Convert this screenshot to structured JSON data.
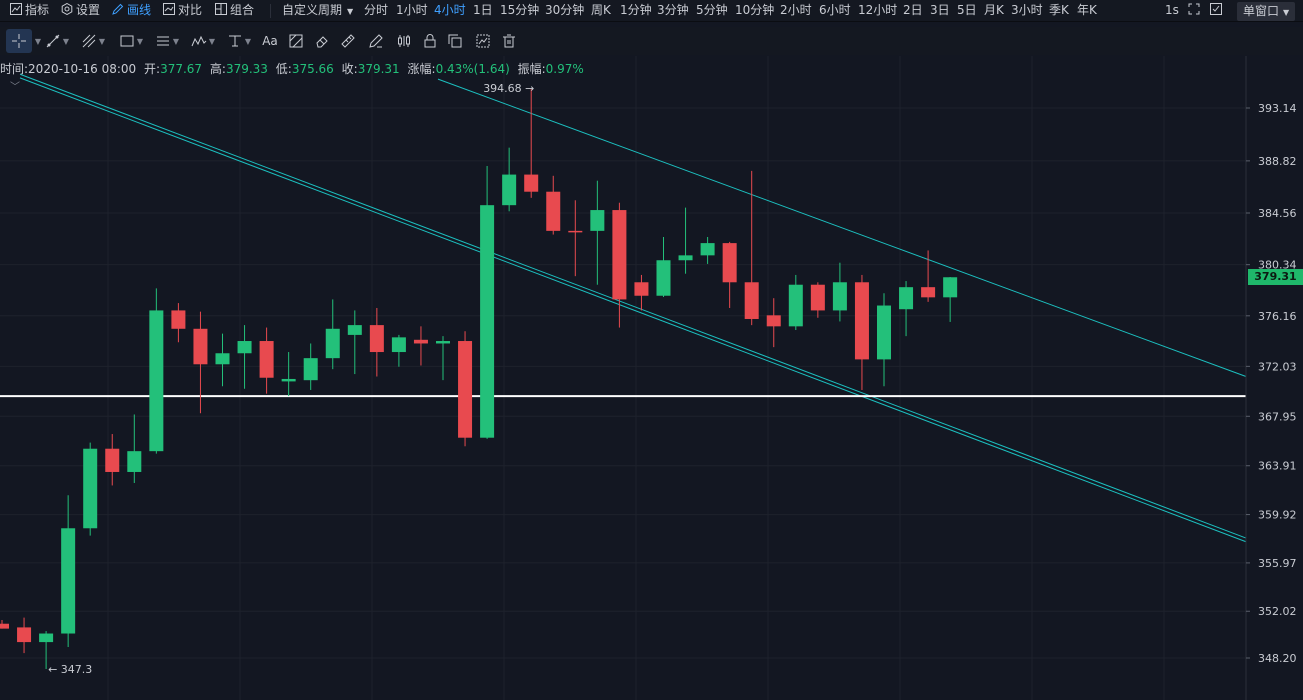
{
  "topbar": {
    "indicators_label": "指标",
    "settings_label": "设置",
    "draw_label": "画线",
    "compare_label": "对比",
    "combine_label": "组合",
    "custom_period_label": "自定义周期",
    "periods": [
      "分时",
      "1小时",
      "4小时",
      "1日",
      "15分钟",
      "30分钟",
      "周K",
      "1分钟",
      "3分钟",
      "5分钟",
      "10分钟",
      "2小时",
      "6小时",
      "12小时",
      "2日",
      "3日",
      "5日",
      "月K",
      "3小时",
      "季K",
      "年K"
    ],
    "active_period": "4小时",
    "refresh_label": "1s",
    "window_label": "单窗口"
  },
  "toolbar": {
    "text_tool_label": "Aa",
    "tools": [
      "crosshair-icon",
      "trend-line-icon",
      "fib-icon",
      "rectangle-icon",
      "parallel-lines-icon",
      "pattern-icon",
      "measure-icon",
      "text-icon",
      "brush-icon",
      "eraser-icon",
      "ruler-icon",
      "pen-icon",
      "candles-icon",
      "lock-icon",
      "copy-icon",
      "visibility-icon",
      "trash-icon"
    ]
  },
  "ohlc": {
    "time_label": "时间:",
    "time_value": "2020-10-16 08:00",
    "open_label": "开:",
    "open_value": "377.67",
    "high_label": "高:",
    "high_value": "379.33",
    "low_label": "低:",
    "low_value": "375.66",
    "close_label": "收:",
    "close_value": "379.31",
    "change_label": "涨幅:",
    "change_value": "0.43%(1.64)",
    "amplitude_label": "振幅:",
    "amplitude_value": "0.97%"
  },
  "colors": {
    "up": "#23c07a",
    "down": "#e84a4f",
    "channel": "#1cc0c0",
    "horizontal": "#ffffff",
    "grid": "#1e222c"
  },
  "chart_data": {
    "type": "candlestick",
    "y_ticks": [
      "393.14",
      "388.82",
      "384.56",
      "380.34",
      "376.16",
      "372.03",
      "367.95",
      "363.91",
      "359.92",
      "355.97",
      "352.02",
      "348.20"
    ],
    "current_price": "379.31",
    "max_label": "394.68",
    "min_label": "347.3",
    "horizontal_line_price": 369.6,
    "candles": [
      {
        "o": 351.0,
        "h": 351.3,
        "l": 350.6,
        "c": 350.6
      },
      {
        "o": 350.7,
        "h": 351.5,
        "l": 348.6,
        "c": 349.5
      },
      {
        "o": 349.5,
        "h": 350.4,
        "l": 347.3,
        "c": 350.2
      },
      {
        "o": 350.2,
        "h": 361.5,
        "l": 349.1,
        "c": 358.8
      },
      {
        "o": 358.8,
        "h": 365.8,
        "l": 358.2,
        "c": 365.3
      },
      {
        "o": 365.3,
        "h": 366.5,
        "l": 362.3,
        "c": 363.4
      },
      {
        "o": 363.4,
        "h": 368.1,
        "l": 362.5,
        "c": 365.1
      },
      {
        "o": 365.1,
        "h": 378.4,
        "l": 364.9,
        "c": 376.6
      },
      {
        "o": 376.6,
        "h": 377.2,
        "l": 374.0,
        "c": 375.1
      },
      {
        "o": 375.1,
        "h": 376.5,
        "l": 368.2,
        "c": 372.2
      },
      {
        "o": 372.2,
        "h": 374.7,
        "l": 370.4,
        "c": 373.1
      },
      {
        "o": 373.1,
        "h": 375.4,
        "l": 370.2,
        "c": 374.1
      },
      {
        "o": 374.1,
        "h": 375.2,
        "l": 369.8,
        "c": 371.1
      },
      {
        "o": 370.8,
        "h": 373.2,
        "l": 369.6,
        "c": 371.0
      },
      {
        "o": 370.9,
        "h": 373.9,
        "l": 370.1,
        "c": 372.7
      },
      {
        "o": 372.7,
        "h": 377.5,
        "l": 371.8,
        "c": 375.1
      },
      {
        "o": 374.6,
        "h": 376.6,
        "l": 371.4,
        "c": 375.4
      },
      {
        "o": 375.4,
        "h": 376.8,
        "l": 371.2,
        "c": 373.2
      },
      {
        "o": 373.2,
        "h": 374.6,
        "l": 372.0,
        "c": 374.4
      },
      {
        "o": 374.2,
        "h": 375.3,
        "l": 372.1,
        "c": 373.9
      },
      {
        "o": 373.9,
        "h": 374.5,
        "l": 370.9,
        "c": 374.1
      },
      {
        "o": 374.1,
        "h": 374.9,
        "l": 365.5,
        "c": 366.2
      },
      {
        "o": 366.2,
        "h": 388.4,
        "l": 366.1,
        "c": 385.2
      },
      {
        "o": 385.2,
        "h": 389.9,
        "l": 384.7,
        "c": 387.7
      },
      {
        "o": 387.7,
        "h": 394.68,
        "l": 385.8,
        "c": 386.3
      },
      {
        "o": 386.3,
        "h": 387.6,
        "l": 382.8,
        "c": 383.1
      },
      {
        "o": 383.1,
        "h": 385.6,
        "l": 379.4,
        "c": 383.0
      },
      {
        "o": 383.1,
        "h": 387.2,
        "l": 378.7,
        "c": 384.8
      },
      {
        "o": 384.8,
        "h": 385.4,
        "l": 375.2,
        "c": 377.5
      },
      {
        "o": 378.9,
        "h": 379.5,
        "l": 376.6,
        "c": 377.8
      },
      {
        "o": 377.8,
        "h": 382.6,
        "l": 377.7,
        "c": 380.7
      },
      {
        "o": 380.7,
        "h": 385.0,
        "l": 379.6,
        "c": 381.1
      },
      {
        "o": 381.1,
        "h": 382.6,
        "l": 380.4,
        "c": 382.1
      },
      {
        "o": 382.1,
        "h": 382.2,
        "l": 376.8,
        "c": 378.9
      },
      {
        "o": 378.9,
        "h": 388.0,
        "l": 375.4,
        "c": 375.9
      },
      {
        "o": 376.2,
        "h": 377.6,
        "l": 373.6,
        "c": 375.3
      },
      {
        "o": 375.3,
        "h": 379.5,
        "l": 375.0,
        "c": 378.7
      },
      {
        "o": 378.7,
        "h": 378.9,
        "l": 376.0,
        "c": 376.6
      },
      {
        "o": 376.6,
        "h": 380.5,
        "l": 375.7,
        "c": 378.9
      },
      {
        "o": 378.9,
        "h": 379.5,
        "l": 370.1,
        "c": 372.6
      },
      {
        "o": 372.6,
        "h": 378.0,
        "l": 370.4,
        "c": 377.0
      },
      {
        "o": 376.7,
        "h": 379.0,
        "l": 374.5,
        "c": 378.5
      },
      {
        "o": 378.5,
        "h": 381.5,
        "l": 377.3,
        "c": 377.67
      },
      {
        "o": 377.67,
        "h": 379.33,
        "l": 375.66,
        "c": 379.31
      }
    ]
  }
}
